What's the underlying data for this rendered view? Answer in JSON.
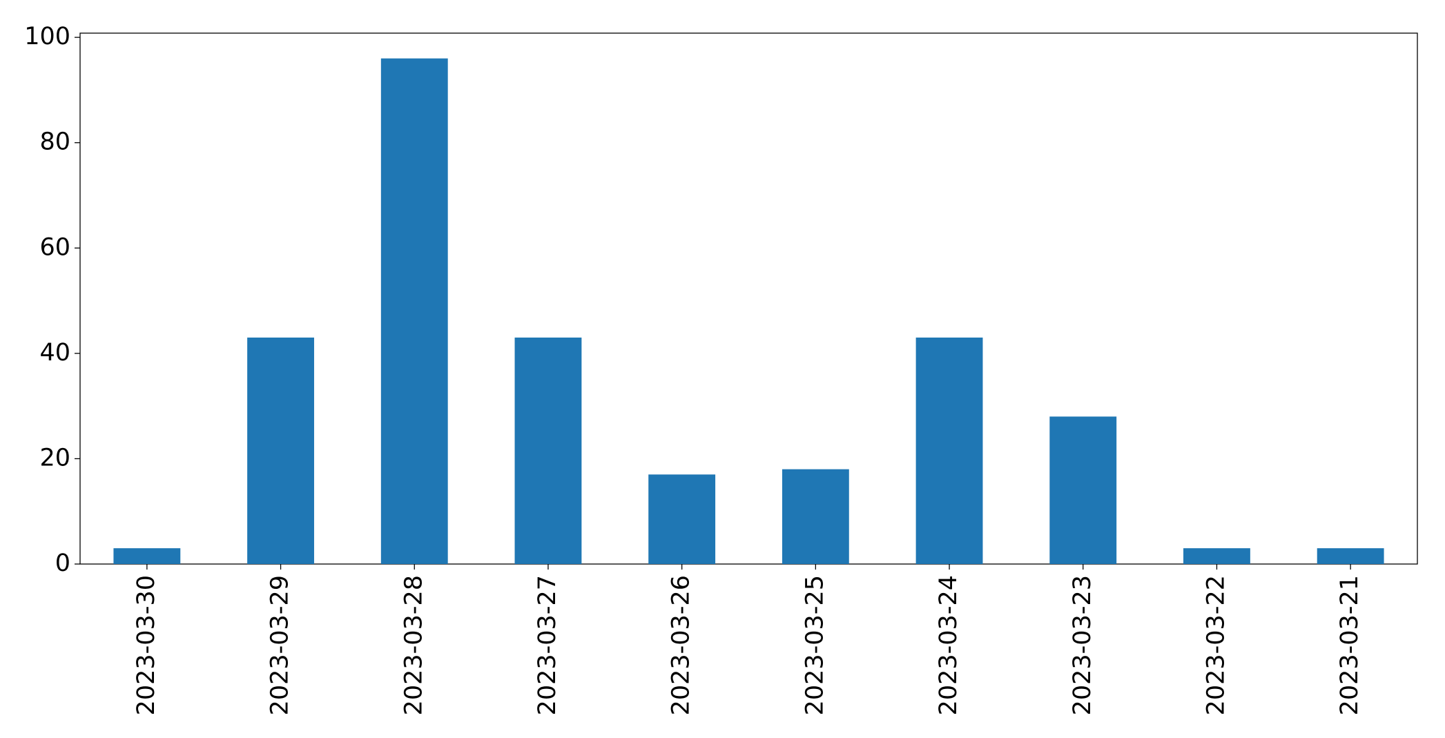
{
  "chart_data": {
    "type": "bar",
    "categories": [
      "2023-03-30",
      "2023-03-29",
      "2023-03-28",
      "2023-03-27",
      "2023-03-26",
      "2023-03-25",
      "2023-03-24",
      "2023-03-23",
      "2023-03-22",
      "2023-03-21"
    ],
    "values": [
      3,
      43,
      96,
      43,
      17,
      18,
      43,
      28,
      3,
      3
    ],
    "color": "#1f77b4",
    "ylim": [
      0,
      100.8
    ],
    "yticks": [
      0,
      20,
      40,
      60,
      80,
      100
    ],
    "grid": false
  }
}
